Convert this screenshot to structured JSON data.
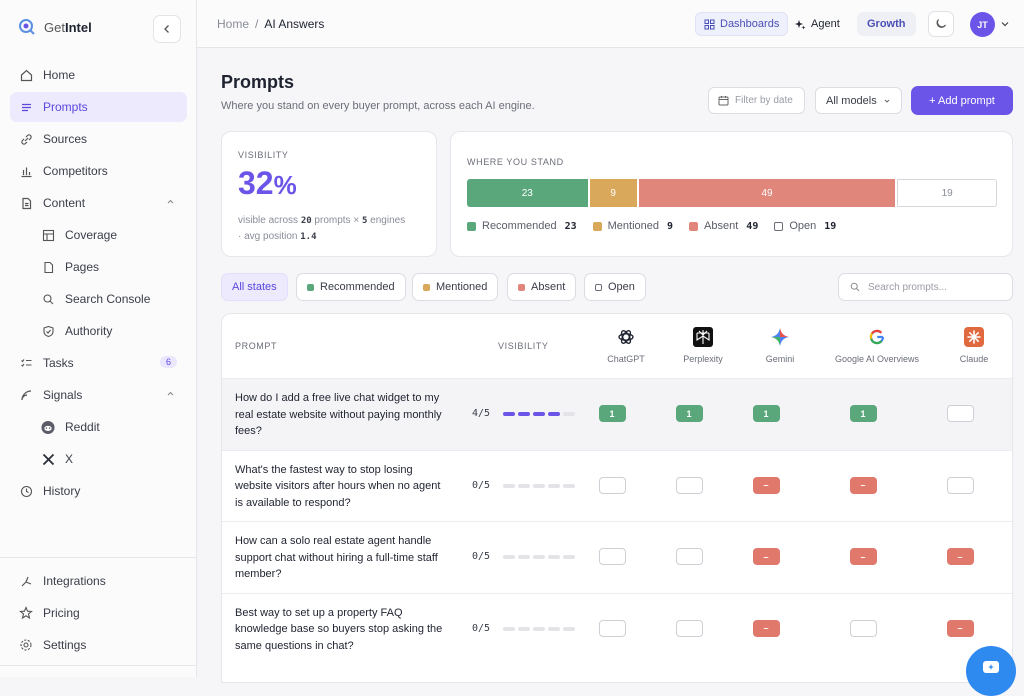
{
  "app": {
    "brand_light": "Get",
    "brand_bold": "Intel"
  },
  "sidebar": {
    "items": [
      {
        "label": "Home",
        "icon": "home-icon"
      },
      {
        "label": "Prompts",
        "icon": "list-icon"
      },
      {
        "label": "Sources",
        "icon": "link-icon"
      },
      {
        "label": "Competitors",
        "icon": "bar-chart-icon"
      },
      {
        "label": "Content",
        "icon": "document-icon"
      },
      {
        "label": "Coverage",
        "icon": "table-icon"
      },
      {
        "label": "Pages",
        "icon": "page-icon"
      },
      {
        "label": "Search Console",
        "icon": "search-icon"
      },
      {
        "label": "Authority",
        "icon": "shield-icon"
      },
      {
        "label": "Tasks",
        "icon": "tasks-icon",
        "badge": "6"
      },
      {
        "label": "Signals",
        "icon": "signal-icon"
      },
      {
        "label": "Reddit",
        "icon": "reddit-icon"
      },
      {
        "label": "X",
        "icon": "x-icon"
      },
      {
        "label": "History",
        "icon": "clock-icon"
      }
    ],
    "footer": [
      {
        "label": "Integrations",
        "icon": "integrations-icon"
      },
      {
        "label": "Pricing",
        "icon": "star-icon"
      },
      {
        "label": "Settings",
        "icon": "gear-icon"
      }
    ]
  },
  "topbar": {
    "breadcrumb_home": "Home",
    "breadcrumb_sep": "/",
    "breadcrumb_current": "AI Answers",
    "dashboards": "Dashboards",
    "agent": "Agent",
    "growth": "Growth",
    "avatar_initials": "JT"
  },
  "header": {
    "title": "Prompts",
    "subtitle": "Where you stand on every buyer prompt, across each AI engine.",
    "filter_placeholder": "Filter by date",
    "models_select": "All models",
    "add_button": "+ Add prompt"
  },
  "visibility_card": {
    "kicker": "VISIBILITY",
    "value": "32",
    "unit": "%",
    "note_pre": "visible across ",
    "prompts": "20",
    "note_mid": " prompts × ",
    "engines": "5",
    "note_post": " engines",
    "avg_pre": "· avg position ",
    "avg_pos": "1.4"
  },
  "stand_card": {
    "kicker": "WHERE YOU STAND",
    "segments": [
      {
        "label": "Recommended",
        "value": 23,
        "color": "#5aa77c"
      },
      {
        "label": "Mentioned",
        "value": 9,
        "color": "#d9a85b"
      },
      {
        "label": "Absent",
        "value": 49,
        "color": "#e0867b"
      },
      {
        "label": "Open",
        "value": 19,
        "color": "#ffffff"
      }
    ]
  },
  "filters": {
    "all": "All states",
    "recommended": "Recommended",
    "mentioned": "Mentioned",
    "absent": "Absent",
    "open": "Open",
    "search_placeholder": "Search prompts..."
  },
  "table": {
    "col_prompt": "PROMPT",
    "col_visibility": "VISIBILITY",
    "engines": [
      "ChatGPT",
      "Perplexity",
      "Gemini",
      "Google AI Overviews",
      "Claude"
    ],
    "rows": [
      {
        "prompt": "How do I add a free live chat widget to my real estate website without paying monthly fees?",
        "score": "4/5",
        "filled": 4,
        "cells": [
          {
            "s": "rec",
            "t": "1"
          },
          {
            "s": "rec",
            "t": "1"
          },
          {
            "s": "rec",
            "t": "1"
          },
          {
            "s": "rec",
            "t": "1"
          },
          {
            "s": "open",
            "t": ""
          }
        ]
      },
      {
        "prompt": "What's the fastest way to stop losing website visitors after hours when no agent is available to respond?",
        "score": "0/5",
        "filled": 0,
        "cells": [
          {
            "s": "open",
            "t": ""
          },
          {
            "s": "open",
            "t": ""
          },
          {
            "s": "abs",
            "t": "–"
          },
          {
            "s": "abs",
            "t": "–"
          },
          {
            "s": "open",
            "t": ""
          }
        ]
      },
      {
        "prompt": "How can a solo real estate agent handle support chat without hiring a full-time staff member?",
        "score": "0/5",
        "filled": 0,
        "cells": [
          {
            "s": "open",
            "t": ""
          },
          {
            "s": "open",
            "t": ""
          },
          {
            "s": "abs",
            "t": "–"
          },
          {
            "s": "abs",
            "t": "–"
          },
          {
            "s": "abs",
            "t": "–"
          }
        ]
      },
      {
        "prompt": "Best way to set up a property FAQ knowledge base so buyers stop asking the same questions in chat?",
        "score": "0/5",
        "filled": 0,
        "cells": [
          {
            "s": "open",
            "t": ""
          },
          {
            "s": "open",
            "t": ""
          },
          {
            "s": "abs",
            "t": "–"
          },
          {
            "s": "open",
            "t": ""
          },
          {
            "s": "abs",
            "t": "–"
          }
        ]
      }
    ]
  }
}
